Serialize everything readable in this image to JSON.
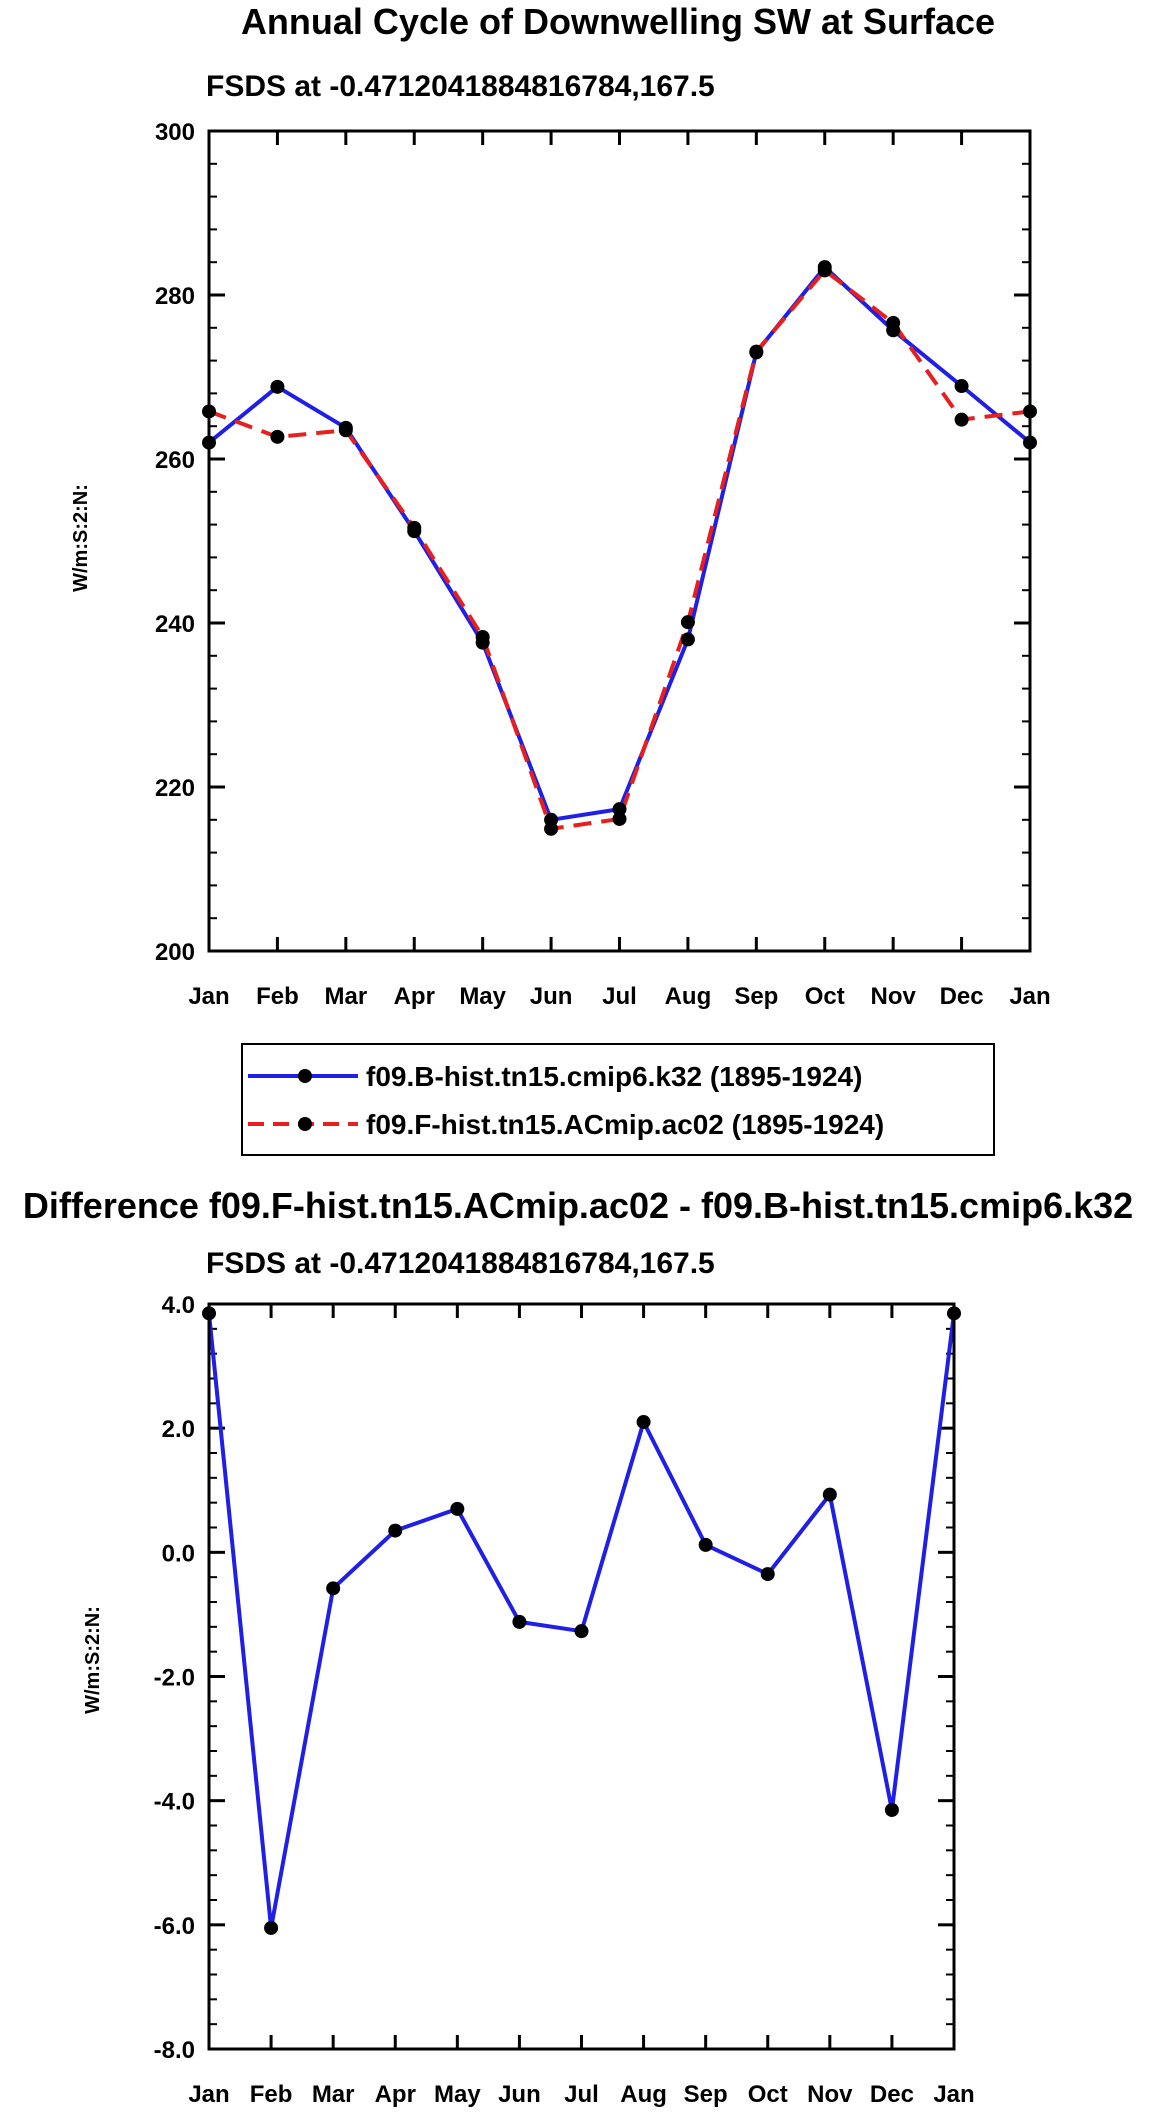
{
  "chart_data": [
    {
      "type": "line",
      "title": "Annual Cycle of Downwelling SW at Surface",
      "subtitle": "FSDS at -0.4712041884816784,167.5",
      "xlabel": "",
      "ylabel": "W/m:S:2:N:",
      "categories": [
        "Jan",
        "Feb",
        "Mar",
        "Apr",
        "May",
        "Jun",
        "Jul",
        "Aug",
        "Sep",
        "Oct",
        "Nov",
        "Dec",
        "Jan"
      ],
      "ylim": [
        200,
        300
      ],
      "yticks": [
        200,
        220,
        240,
        260,
        280,
        300
      ],
      "ytick_labels": [
        "200",
        "220",
        "240",
        "260",
        "280",
        "300"
      ],
      "series": [
        {
          "name": "f09.B-hist.tn15.cmip6.k32 (1895-1924)",
          "color": "#1f1fe6",
          "style": "solid",
          "values": [
            262.0,
            268.8,
            263.8,
            251.2,
            237.6,
            216.0,
            217.3,
            238.0,
            273.0,
            283.4,
            275.7,
            268.9,
            262.0
          ]
        },
        {
          "name": "f09.F-hist.tn15.ACmip.ac02 (1895-1924)",
          "color": "#e61f1f",
          "style": "dashed",
          "values": [
            265.8,
            262.7,
            263.5,
            251.6,
            238.3,
            214.9,
            216.1,
            240.1,
            273.1,
            283.0,
            276.6,
            264.8,
            265.8
          ]
        }
      ],
      "legend": "bottom"
    },
    {
      "type": "line",
      "title": "Difference f09.F-hist.tn15.ACmip.ac02 - f09.B-hist.tn15.cmip6.k32",
      "subtitle": "FSDS at -0.4712041884816784,167.5",
      "xlabel": "",
      "ylabel": "W/m:S:2:N:",
      "categories": [
        "Jan",
        "Feb",
        "Mar",
        "Apr",
        "May",
        "Jun",
        "Jul",
        "Aug",
        "Sep",
        "Oct",
        "Nov",
        "Dec",
        "Jan"
      ],
      "ylim": [
        -8.0,
        4.0
      ],
      "yticks": [
        -8.0,
        -6.0,
        -4.0,
        -2.0,
        0.0,
        2.0,
        4.0
      ],
      "ytick_labels": [
        "-8.0",
        "-6.0",
        "-4.0",
        "-2.0",
        "0.0",
        "2.0",
        "4.0"
      ],
      "series": [
        {
          "name": "Difference",
          "color": "#1f1fe6",
          "style": "solid",
          "values": [
            3.85,
            -6.05,
            -0.58,
            0.35,
            0.7,
            -1.12,
            -1.27,
            2.1,
            0.12,
            -0.35,
            0.93,
            -4.15,
            3.85
          ]
        }
      ]
    }
  ]
}
